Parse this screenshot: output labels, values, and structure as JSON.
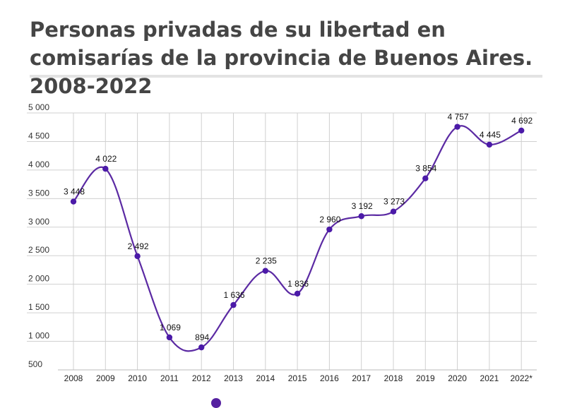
{
  "title": "Personas privadas de su libertad en comisarías de la provincia de Buenos Aires. 2008-2022",
  "colors": {
    "line": "#5b2aa3",
    "point": "#4b1aa8",
    "grid": "#d0d0d0"
  },
  "chart_data": {
    "type": "line",
    "title": "Personas privadas de su libertad en comisarías de la provincia de Buenos Aires. 2008-2022",
    "xlabel": "",
    "ylabel": "",
    "categories": [
      "2008",
      "2009",
      "2010",
      "2011",
      "2012",
      "2013",
      "2014",
      "2015",
      "2016",
      "2017",
      "2018",
      "2019",
      "2020",
      "2021",
      "2022*"
    ],
    "series": [
      {
        "values": [
          3448,
          4022,
          2492,
          1069,
          894,
          1636,
          2235,
          1836,
          2960,
          3192,
          3273,
          3854,
          4757,
          4445,
          4692
        ]
      }
    ],
    "data_labels": [
      "3 448",
      "4 022",
      "2 492",
      "1 069",
      "894",
      "1 636",
      "2 235",
      "1 836",
      "2 960",
      "3 192",
      "3 273",
      "3 854",
      "4 757",
      "4 445",
      "4 692"
    ],
    "ylim": [
      500,
      5000
    ],
    "yticks": [
      500,
      1000,
      1500,
      2000,
      2500,
      3000,
      3500,
      4000,
      4500,
      5000
    ],
    "ytick_labels": [
      "500",
      "1 000",
      "1 500",
      "2 000",
      "2 500",
      "3 000",
      "3 500",
      "4 000",
      "4 500",
      "5 000"
    ],
    "grid": true,
    "smooth": true
  }
}
